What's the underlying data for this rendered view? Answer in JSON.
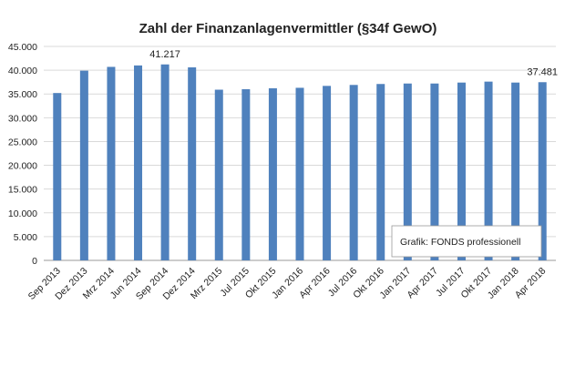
{
  "chart_data": {
    "type": "bar",
    "title": "Zahl der Finanzanlagenvermittler (§34f GewO)",
    "xlabel": "",
    "ylabel": "",
    "categories": [
      "Sep 2013",
      "Dez 2013",
      "Mrz 2014",
      "Jun 2014",
      "Sep 2014",
      "Dez 2014",
      "Mrz 2015",
      "Jul 2015",
      "Okt 2015",
      "Jan 2016",
      "Apr 2016",
      "Jul 2016",
      "Okt 2016",
      "Jan 2017",
      "Apr 2017",
      "Jul 2017",
      "Okt 2017",
      "Jan 2018",
      "Apr 2018"
    ],
    "values": [
      35200,
      39900,
      40700,
      41000,
      41217,
      40600,
      35900,
      36000,
      36200,
      36300,
      36700,
      36900,
      37100,
      37200,
      37200,
      37400,
      37600,
      37400,
      37481
    ],
    "ylim": [
      0,
      45000
    ],
    "y_ticks": [
      "0",
      "5.000",
      "10.000",
      "15.000",
      "20.000",
      "25.000",
      "30.000",
      "35.000",
      "40.000",
      "45.000"
    ],
    "data_labels": [
      {
        "index": 4,
        "text": "41.217"
      },
      {
        "index": 18,
        "text": "37.481"
      }
    ],
    "grid": "horizontal",
    "legend": "none",
    "bar_color": "#4f81bd",
    "annotation": "Grafik: FONDS professionell"
  }
}
